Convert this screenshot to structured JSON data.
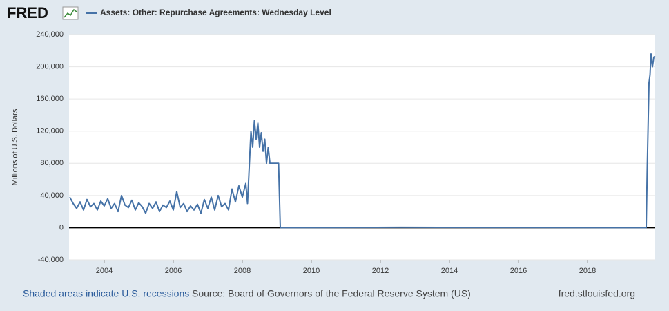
{
  "chart_data": {
    "type": "line",
    "logo": "FRED",
    "title": "Assets: Other: Repurchase Agreements: Wednesday Level",
    "y_label": "Millions of U.S. Dollars",
    "footer_left": "Shaded areas indicate U.S. recessions",
    "footer_source": "Source: Board of Governors of the Federal Reserve System (US)",
    "footer_right": "fred.stlouisfed.org",
    "xlim": [
      2002.98,
      2019.96
    ],
    "xticks": [
      2004,
      2006,
      2008,
      2010,
      2012,
      2014,
      2016,
      2018
    ],
    "ylim": [
      -40000,
      240000
    ],
    "yticks": [
      {
        "value": -40000,
        "label": "-40,000"
      },
      0,
      {
        "value": 40000,
        "label": "40,000"
      },
      {
        "value": 80000,
        "label": "80,000"
      },
      {
        "value": 120000,
        "label": "120,000"
      },
      {
        "value": 160000,
        "label": "160,000"
      },
      {
        "value": 200000,
        "label": "200,000"
      },
      {
        "value": 240000,
        "label": "240,000"
      }
    ],
    "grid": true,
    "x": [
      2003.0,
      2003.1,
      2003.2,
      2003.3,
      2003.4,
      2003.5,
      2003.6,
      2003.7,
      2003.8,
      2003.9,
      2004.0,
      2004.1,
      2004.2,
      2004.3,
      2004.4,
      2004.5,
      2004.6,
      2004.7,
      2004.8,
      2004.9,
      2005.0,
      2005.1,
      2005.2,
      2005.3,
      2005.4,
      2005.5,
      2005.6,
      2005.7,
      2005.8,
      2005.9,
      2006.0,
      2006.1,
      2006.2,
      2006.3,
      2006.4,
      2006.5,
      2006.6,
      2006.7,
      2006.8,
      2006.9,
      2007.0,
      2007.1,
      2007.2,
      2007.3,
      2007.4,
      2007.5,
      2007.6,
      2007.7,
      2007.8,
      2007.9,
      2008.0,
      2008.1,
      2008.15,
      2008.2,
      2008.25,
      2008.3,
      2008.35,
      2008.4,
      2008.45,
      2008.5,
      2008.55,
      2008.6,
      2008.65,
      2008.7,
      2008.75,
      2008.8,
      2009.05,
      2009.1,
      2012.6,
      2019.7,
      2019.73,
      2019.78,
      2019.81,
      2019.84,
      2019.88,
      2019.92,
      2019.96
    ],
    "series": [
      {
        "name": "Assets: Other: Repurchase Agreements: Wednesday Level",
        "color": "#4572a7",
        "values": [
          38000,
          30000,
          24000,
          32000,
          22000,
          35000,
          26000,
          30000,
          22000,
          33000,
          27000,
          36000,
          24000,
          30000,
          20000,
          40000,
          28000,
          25000,
          34000,
          22000,
          31000,
          26000,
          18000,
          30000,
          24000,
          32000,
          20000,
          28000,
          25000,
          33000,
          22000,
          45000,
          25000,
          30000,
          20000,
          27000,
          22000,
          29000,
          18000,
          35000,
          24000,
          38000,
          22000,
          40000,
          26000,
          30000,
          22000,
          48000,
          32000,
          52000,
          38000,
          55000,
          30000,
          75000,
          120000,
          100000,
          133000,
          110000,
          130000,
          100000,
          118000,
          95000,
          110000,
          80000,
          100000,
          80000,
          80000,
          0,
          500,
          0,
          75000,
          180000,
          190000,
          216000,
          200000,
          212000,
          213000
        ]
      }
    ]
  }
}
